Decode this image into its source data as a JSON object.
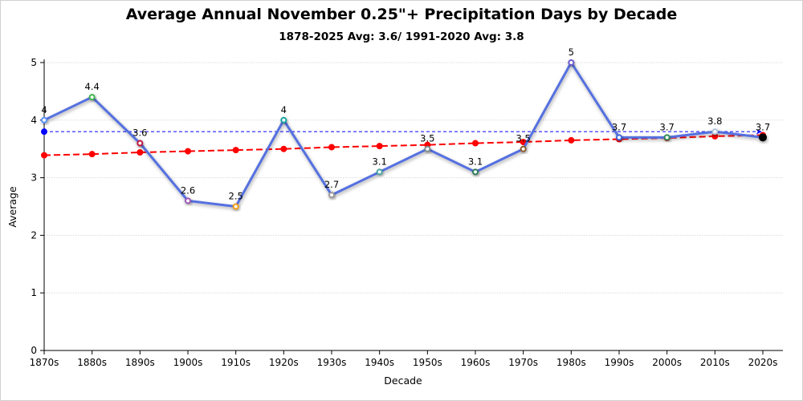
{
  "chart_data": {
    "type": "line",
    "title": "Average Annual November 0.25\"+ Precipitation Days by Decade",
    "subtitle": "1878-2025 Avg: 3.6/ 1991-2020 Avg: 3.8",
    "xlabel": "Decade",
    "ylabel": "Average",
    "ylim": [
      0,
      5
    ],
    "yticks": [
      "0",
      "1",
      "2",
      "3",
      "4",
      "5"
    ],
    "grid": true,
    "categories": [
      "1870s",
      "1880s",
      "1890s",
      "1900s",
      "1910s",
      "1920s",
      "1930s",
      "1940s",
      "1950s",
      "1960s",
      "1970s",
      "1980s",
      "1990s",
      "2000s",
      "2010s",
      "2020s"
    ],
    "series": [
      {
        "values": [
          4,
          4.4,
          3.6,
          2.6,
          2.5,
          4,
          2.7,
          3.1,
          3.5,
          3.1,
          3.5,
          5,
          3.7,
          3.7,
          3.8,
          3.7
        ],
        "labels": [
          "4",
          "4.4",
          "3.6",
          "2.6",
          "2.5",
          "4",
          "2.7",
          "3.1",
          "3.5",
          "3.1",
          "3.5",
          "5",
          "3.7",
          "3.7",
          "3.8",
          "3.7"
        ],
        "color": "#5470e0",
        "marker_colors": [
          "#5b8ff9",
          "#3cb44b",
          "#c0143c",
          "#9b59b6",
          "#f39c12",
          "#17a2a2",
          "#999999",
          "#4aa3a3",
          "#7f8c8d",
          "#2e7d5b",
          "#8b5a2b",
          "#6a5acd",
          "#4169e1",
          "#2e8b57",
          "#b0c4de",
          "#000000"
        ]
      },
      {
        "type": "trend",
        "values": [
          3.39,
          3.41,
          3.44,
          3.46,
          3.48,
          3.5,
          3.53,
          3.55,
          3.57,
          3.6,
          3.62,
          3.65,
          3.67,
          3.69,
          3.72,
          3.74
        ],
        "color": "#ff0000"
      },
      {
        "type": "average",
        "value": 3.8,
        "color": "#0000ff"
      }
    ]
  }
}
